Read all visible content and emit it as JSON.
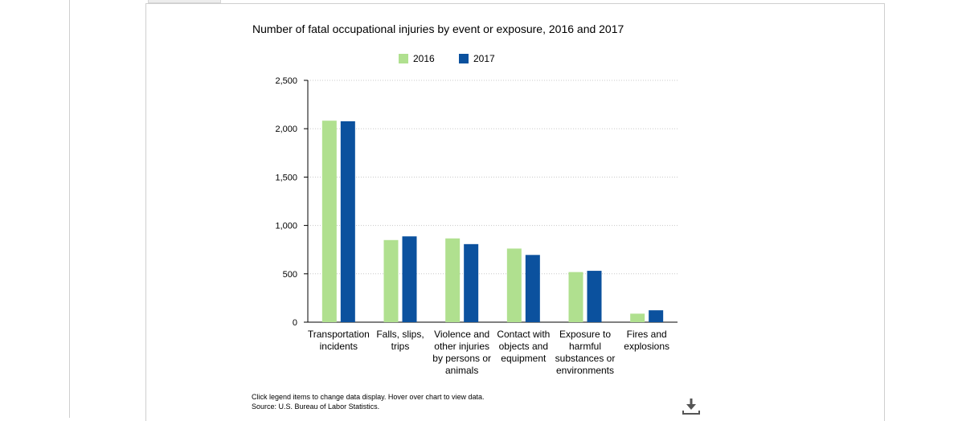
{
  "chart_data": {
    "type": "bar",
    "title": "Number of fatal occupational injuries by event or exposure, 2016 and 2017",
    "categories": [
      [
        "Transportation",
        "incidents"
      ],
      [
        "Falls, slips,",
        "trips"
      ],
      [
        "Violence and",
        "other injuries",
        "by persons or",
        "animals"
      ],
      [
        "Contact with",
        "objects and",
        "equipment"
      ],
      [
        "Exposure to",
        "harmful",
        "substances or",
        "environments"
      ],
      [
        "Fires and",
        "explosions"
      ]
    ],
    "series": [
      {
        "name": "2016",
        "color": "#b0e08f",
        "values": [
          2083,
          849,
          866,
          761,
          518,
          88
        ]
      },
      {
        "name": "2017",
        "color": "#0b519e",
        "values": [
          2077,
          887,
          807,
          695,
          531,
          123
        ]
      }
    ],
    "ylim": [
      0,
      2500
    ],
    "yticks": [
      0,
      500,
      1000,
      1500,
      2000,
      2500
    ],
    "ytick_labels": [
      "0",
      "500",
      "1,000",
      "1,500",
      "2,000",
      "2,500"
    ],
    "grid": true,
    "legend_position": "top-center"
  },
  "footer": {
    "instructions": "Click legend items to change data display. Hover over chart to view data.",
    "source": "Source: U.S. Bureau of Labor Statistics."
  },
  "icons": {
    "download": "download-icon"
  }
}
